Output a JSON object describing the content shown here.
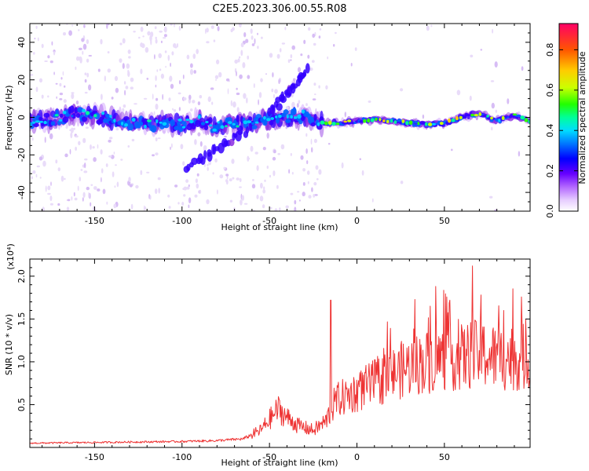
{
  "title": "C2E5.2023.306.00.55.R08",
  "chart_data": [
    {
      "type": "heatmap",
      "xlabel": "Height of straight line (km)",
      "ylabel": "Frequency (Hz)",
      "xlim": [
        -187,
        99
      ],
      "ylim": [
        -50,
        50
      ],
      "xticks": [
        -150,
        -100,
        -50,
        0,
        50
      ],
      "yticks": [
        -40,
        -20,
        0,
        20,
        40
      ],
      "grid": false,
      "colorbar": {
        "label": "Normalized spectral amplitude",
        "range": [
          0,
          0.93
        ],
        "ticks": [
          "0.0",
          "0.2",
          "0.4",
          "0.6",
          "0.8"
        ],
        "colormap": [
          "#ffffff",
          "#cc99ff",
          "#8a2be2",
          "#3300ff",
          "#0066ff",
          "#00ccff",
          "#00ff99",
          "#33ff00",
          "#ccff00",
          "#ffcc00",
          "#ff6600",
          "#ff0066"
        ]
      },
      "ridge": [
        {
          "x": -187,
          "y": -2
        },
        {
          "x": -170,
          "y": 0
        },
        {
          "x": -160,
          "y": 2
        },
        {
          "x": -150,
          "y": 1
        },
        {
          "x": -140,
          "y": -1
        },
        {
          "x": -130,
          "y": -3
        },
        {
          "x": -120,
          "y": -4
        },
        {
          "x": -110,
          "y": -2
        },
        {
          "x": -100,
          "y": -4
        },
        {
          "x": -90,
          "y": -2
        },
        {
          "x": -80,
          "y": -5
        },
        {
          "x": -70,
          "y": -3
        },
        {
          "x": -60,
          "y": -3
        },
        {
          "x": -50,
          "y": -1
        },
        {
          "x": -40,
          "y": 0
        },
        {
          "x": -30,
          "y": 1
        },
        {
          "x": -20,
          "y": -3
        },
        {
          "x": -10,
          "y": -3
        },
        {
          "x": 0,
          "y": -2
        },
        {
          "x": 10,
          "y": -1
        },
        {
          "x": 20,
          "y": -2
        },
        {
          "x": 30,
          "y": -3
        },
        {
          "x": 40,
          "y": -4
        },
        {
          "x": 50,
          "y": -3
        },
        {
          "x": 60,
          "y": 0
        },
        {
          "x": 70,
          "y": 2
        },
        {
          "x": 80,
          "y": -2
        },
        {
          "x": 90,
          "y": 1
        },
        {
          "x": 99,
          "y": -2
        }
      ],
      "branches": [
        {
          "from": [
            -97,
            -27
          ],
          "to": [
            -60,
            -5
          ]
        },
        {
          "from": [
            -50,
            2
          ],
          "to": [
            -27,
            27
          ]
        }
      ]
    },
    {
      "type": "line",
      "xlabel": "Height of straight line (km)",
      "ylabel": "SNR (10 * v/v)",
      "yunit": "(x10⁴)",
      "xlim": [
        -187,
        99
      ],
      "ylim": [
        0,
        2.2
      ],
      "xticks": [
        -150,
        -100,
        -50,
        0,
        50
      ],
      "yticks": [
        0.5,
        1.0,
        1.5,
        2.0
      ],
      "color": "#ee3333",
      "grid": false,
      "envelope": [
        {
          "x": -187,
          "y": 0.05
        },
        {
          "x": -100,
          "y": 0.07
        },
        {
          "x": -80,
          "y": 0.08
        },
        {
          "x": -65,
          "y": 0.1
        },
        {
          "x": -55,
          "y": 0.2
        },
        {
          "x": -45,
          "y": 0.45
        },
        {
          "x": -40,
          "y": 0.35
        },
        {
          "x": -33,
          "y": 0.25
        },
        {
          "x": -25,
          "y": 0.2
        },
        {
          "x": -18,
          "y": 0.3
        },
        {
          "x": -12,
          "y": 0.55
        },
        {
          "x": 0,
          "y": 0.65
        },
        {
          "x": 10,
          "y": 0.75
        },
        {
          "x": 20,
          "y": 0.85
        },
        {
          "x": 30,
          "y": 0.95
        },
        {
          "x": 40,
          "y": 1.0
        },
        {
          "x": 50,
          "y": 1.05
        },
        {
          "x": 60,
          "y": 1.05
        },
        {
          "x": 70,
          "y": 1.1
        },
        {
          "x": 80,
          "y": 1.05
        },
        {
          "x": 90,
          "y": 1.05
        },
        {
          "x": 99,
          "y": 1.05
        }
      ],
      "peaks": [
        {
          "x": -15,
          "y": 1.72
        },
        {
          "x": 42,
          "y": 1.65
        },
        {
          "x": 45,
          "y": 1.88
        },
        {
          "x": 53,
          "y": 1.72
        },
        {
          "x": 66,
          "y": 2.12
        },
        {
          "x": 71,
          "y": 1.78
        },
        {
          "x": 84,
          "y": 1.6
        }
      ]
    }
  ]
}
